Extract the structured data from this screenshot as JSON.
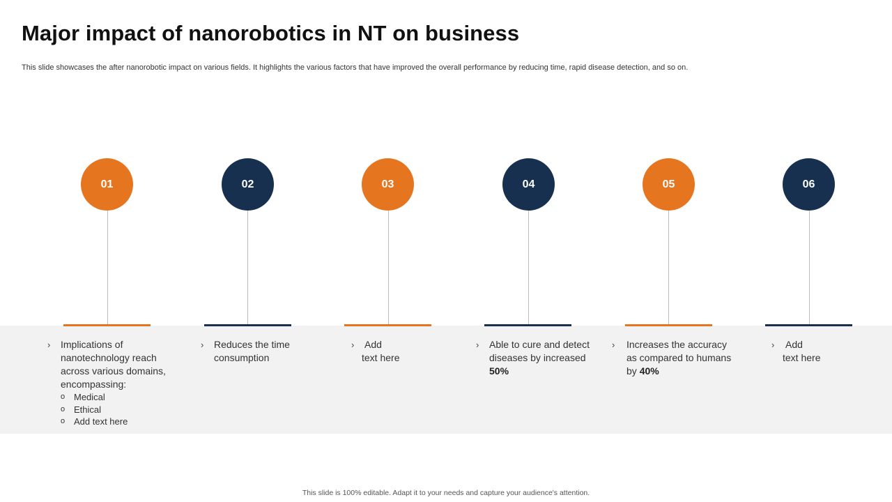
{
  "title": "Major impact of nanorobotics in NT on business",
  "subtitle": "This slide showcases the after nanorobotic impact on various fields. It highlights the various factors that have improved the overall performance by reducing time, rapid disease detection, and so on.",
  "colors": {
    "orange": "#e5751f",
    "navy": "#17304f",
    "band": "#f2f2f2"
  },
  "items": [
    {
      "number": "01",
      "color": "orange",
      "text": "Implications of nanotechnology reach across various domains, encompassing:",
      "sub": [
        "Medical",
        "Ethical",
        "Add text here"
      ]
    },
    {
      "number": "02",
      "color": "navy",
      "text": "Reduces the time consumption"
    },
    {
      "number": "03",
      "color": "orange",
      "line1": "Add",
      "line2": "text here"
    },
    {
      "number": "04",
      "color": "navy",
      "text": "Able to cure and detect diseases by increased ",
      "bold": "50%"
    },
    {
      "number": "05",
      "color": "orange",
      "text": "Increases the accuracy as compared to humans by ",
      "bold": "40%"
    },
    {
      "number": "06",
      "color": "navy",
      "line1": "Add",
      "line2": "text here"
    }
  ],
  "chevron": "›",
  "sub_bullet": "o",
  "footer": "This slide is 100% editable. Adapt it to your needs and capture your audience's attention."
}
